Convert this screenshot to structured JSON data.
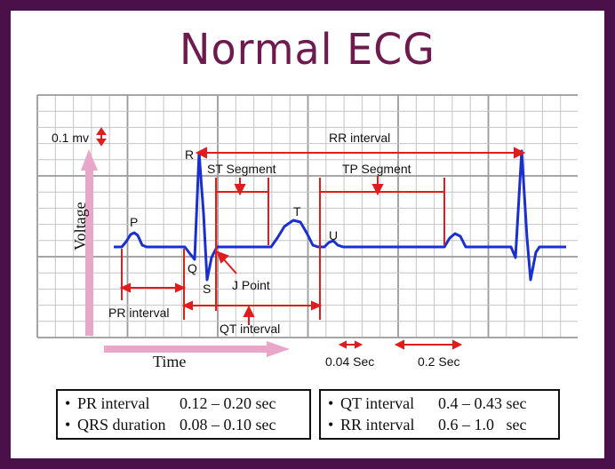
{
  "title": "Normal ECG",
  "labels": {
    "scale": "0.1 mv",
    "rr": "RR interval",
    "st": "ST Segment",
    "tp": "TP Segment",
    "p": "P",
    "q": "Q",
    "r": "R",
    "s": "S",
    "t": "T",
    "u": "U",
    "jpoint": "J Point",
    "pr": "PR interval",
    "qt": "QT interval",
    "voltage": "Voltage",
    "time": "Time",
    "small_box": "0.04 Sec",
    "large_box": "0.2 Sec"
  },
  "table_left": [
    {
      "name": "PR interval",
      "value": "0.12 – 0.20 sec"
    },
    {
      "name": "QRS duration",
      "value": "0.08 – 0.10 sec"
    }
  ],
  "table_right": [
    {
      "name": "QT interval",
      "value": "0.4 – 0.43 sec"
    },
    {
      "name": "RR interval",
      "value": "0.6 – 1.0   sec"
    }
  ],
  "colors": {
    "frame": "#4b0f4a",
    "title": "#6e1a4f",
    "wave": "#1a2fcf",
    "marker": "#e01c1c",
    "axis": "#e8a7c8",
    "grid": "#bdbdbd"
  }
}
